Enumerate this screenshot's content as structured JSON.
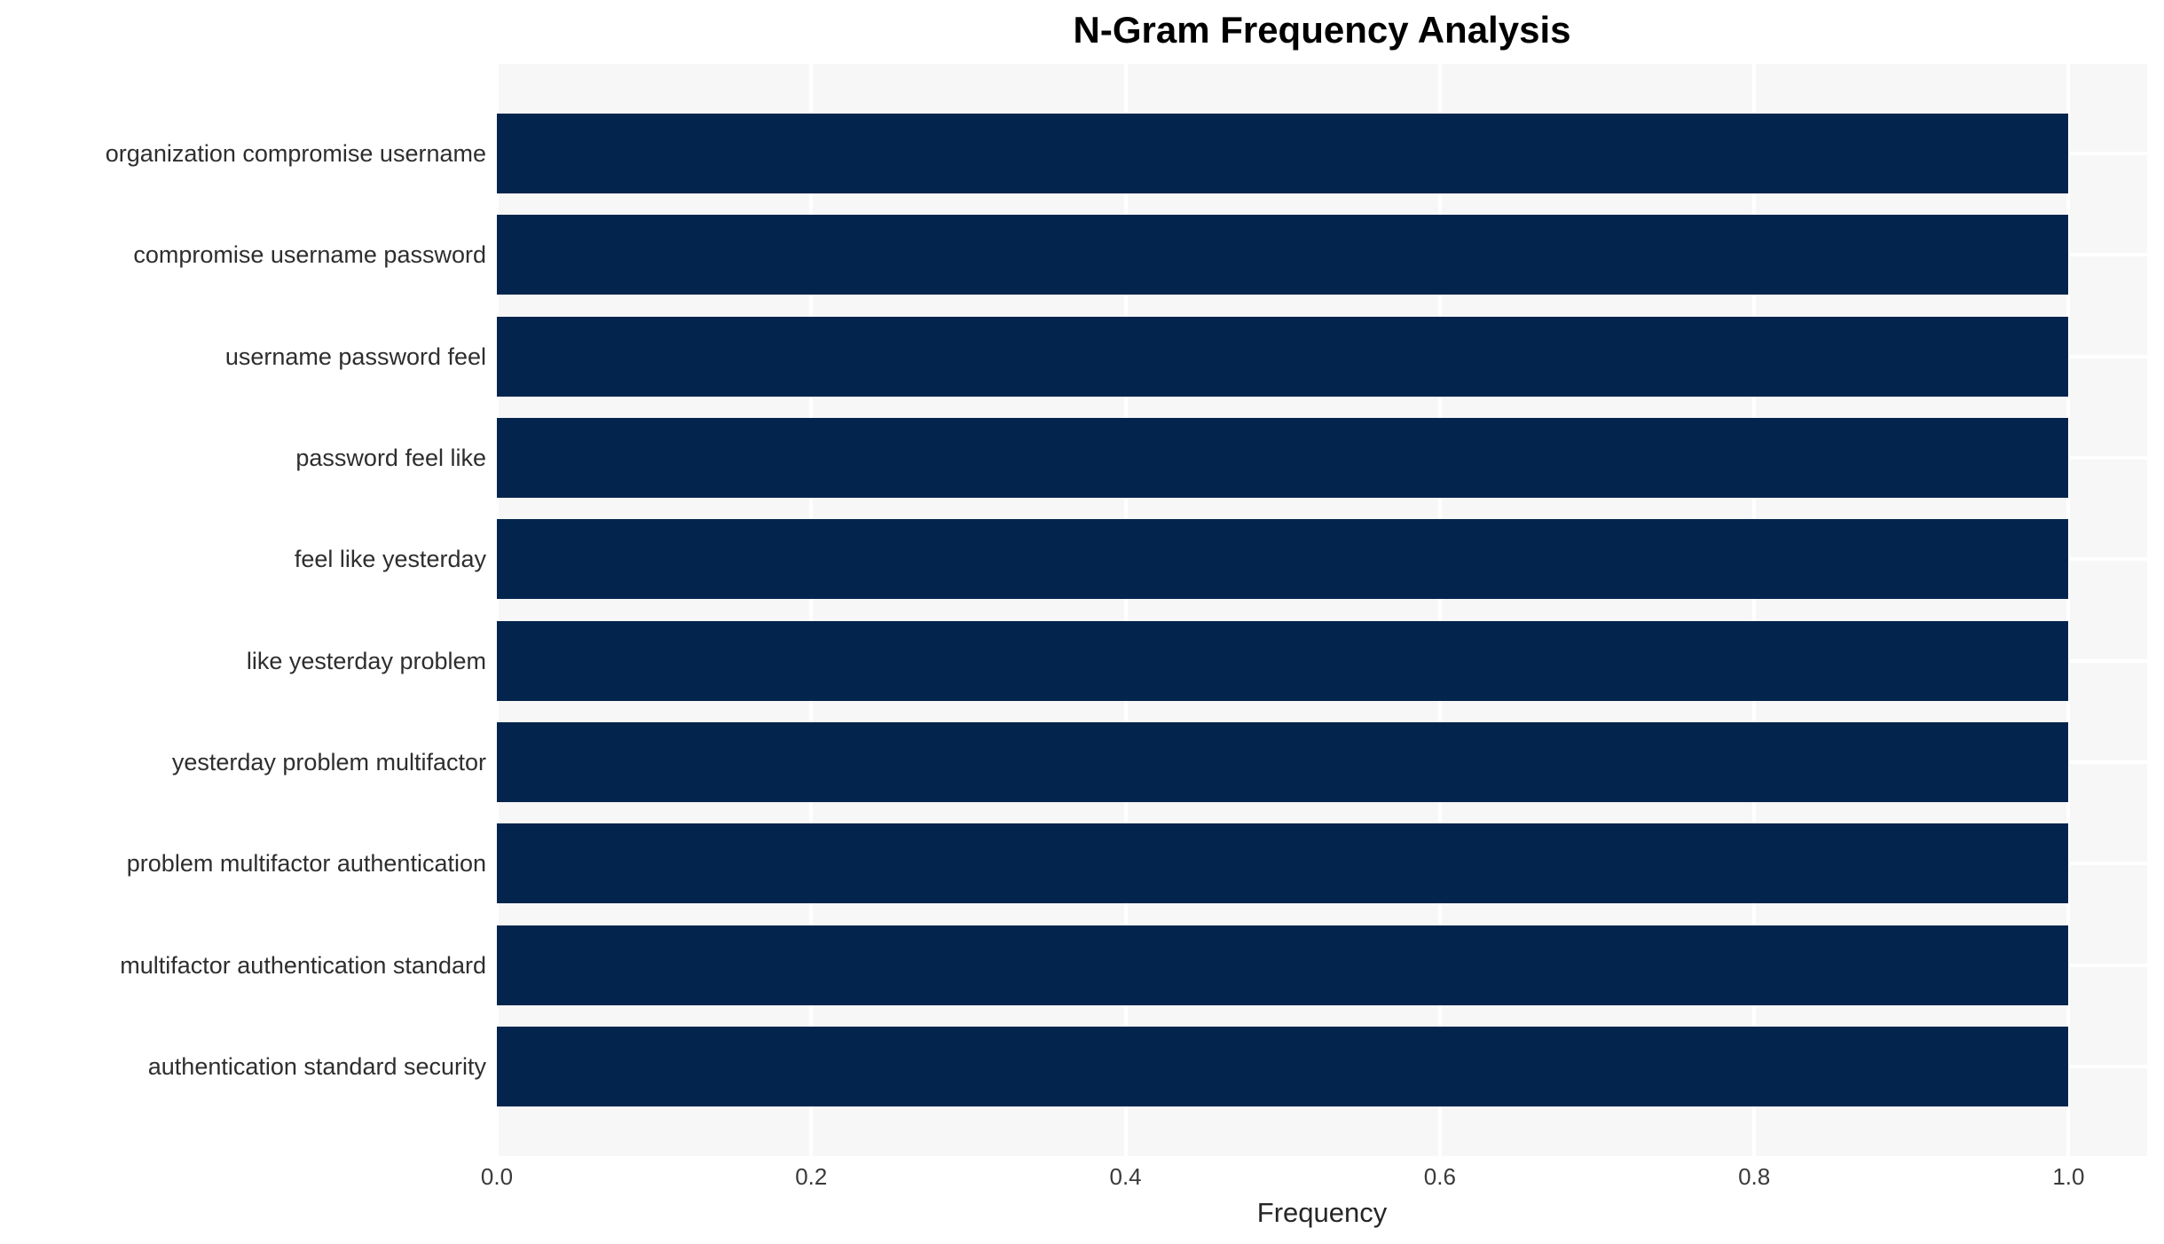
{
  "chart_data": {
    "type": "bar",
    "orientation": "horizontal",
    "title": "N-Gram Frequency Analysis",
    "xlabel": "Frequency",
    "ylabel": "",
    "categories": [
      "organization compromise username",
      "compromise username password",
      "username password feel",
      "password feel like",
      "feel like yesterday",
      "like yesterday problem",
      "yesterday problem multifactor",
      "problem multifactor authentication",
      "multifactor authentication standard",
      "authentication standard security"
    ],
    "values": [
      1.0,
      1.0,
      1.0,
      1.0,
      1.0,
      1.0,
      1.0,
      1.0,
      1.0,
      1.0
    ],
    "xticks": [
      "0.0",
      "0.2",
      "0.4",
      "0.6",
      "0.8",
      "1.0"
    ],
    "xlim": [
      0,
      1.05
    ],
    "grid": true,
    "legend": false,
    "colors": {
      "bar": "#03254d",
      "plot_background": "#f7f7f8",
      "gridline": "#ffffff",
      "figure_background": "#ffffff"
    }
  }
}
